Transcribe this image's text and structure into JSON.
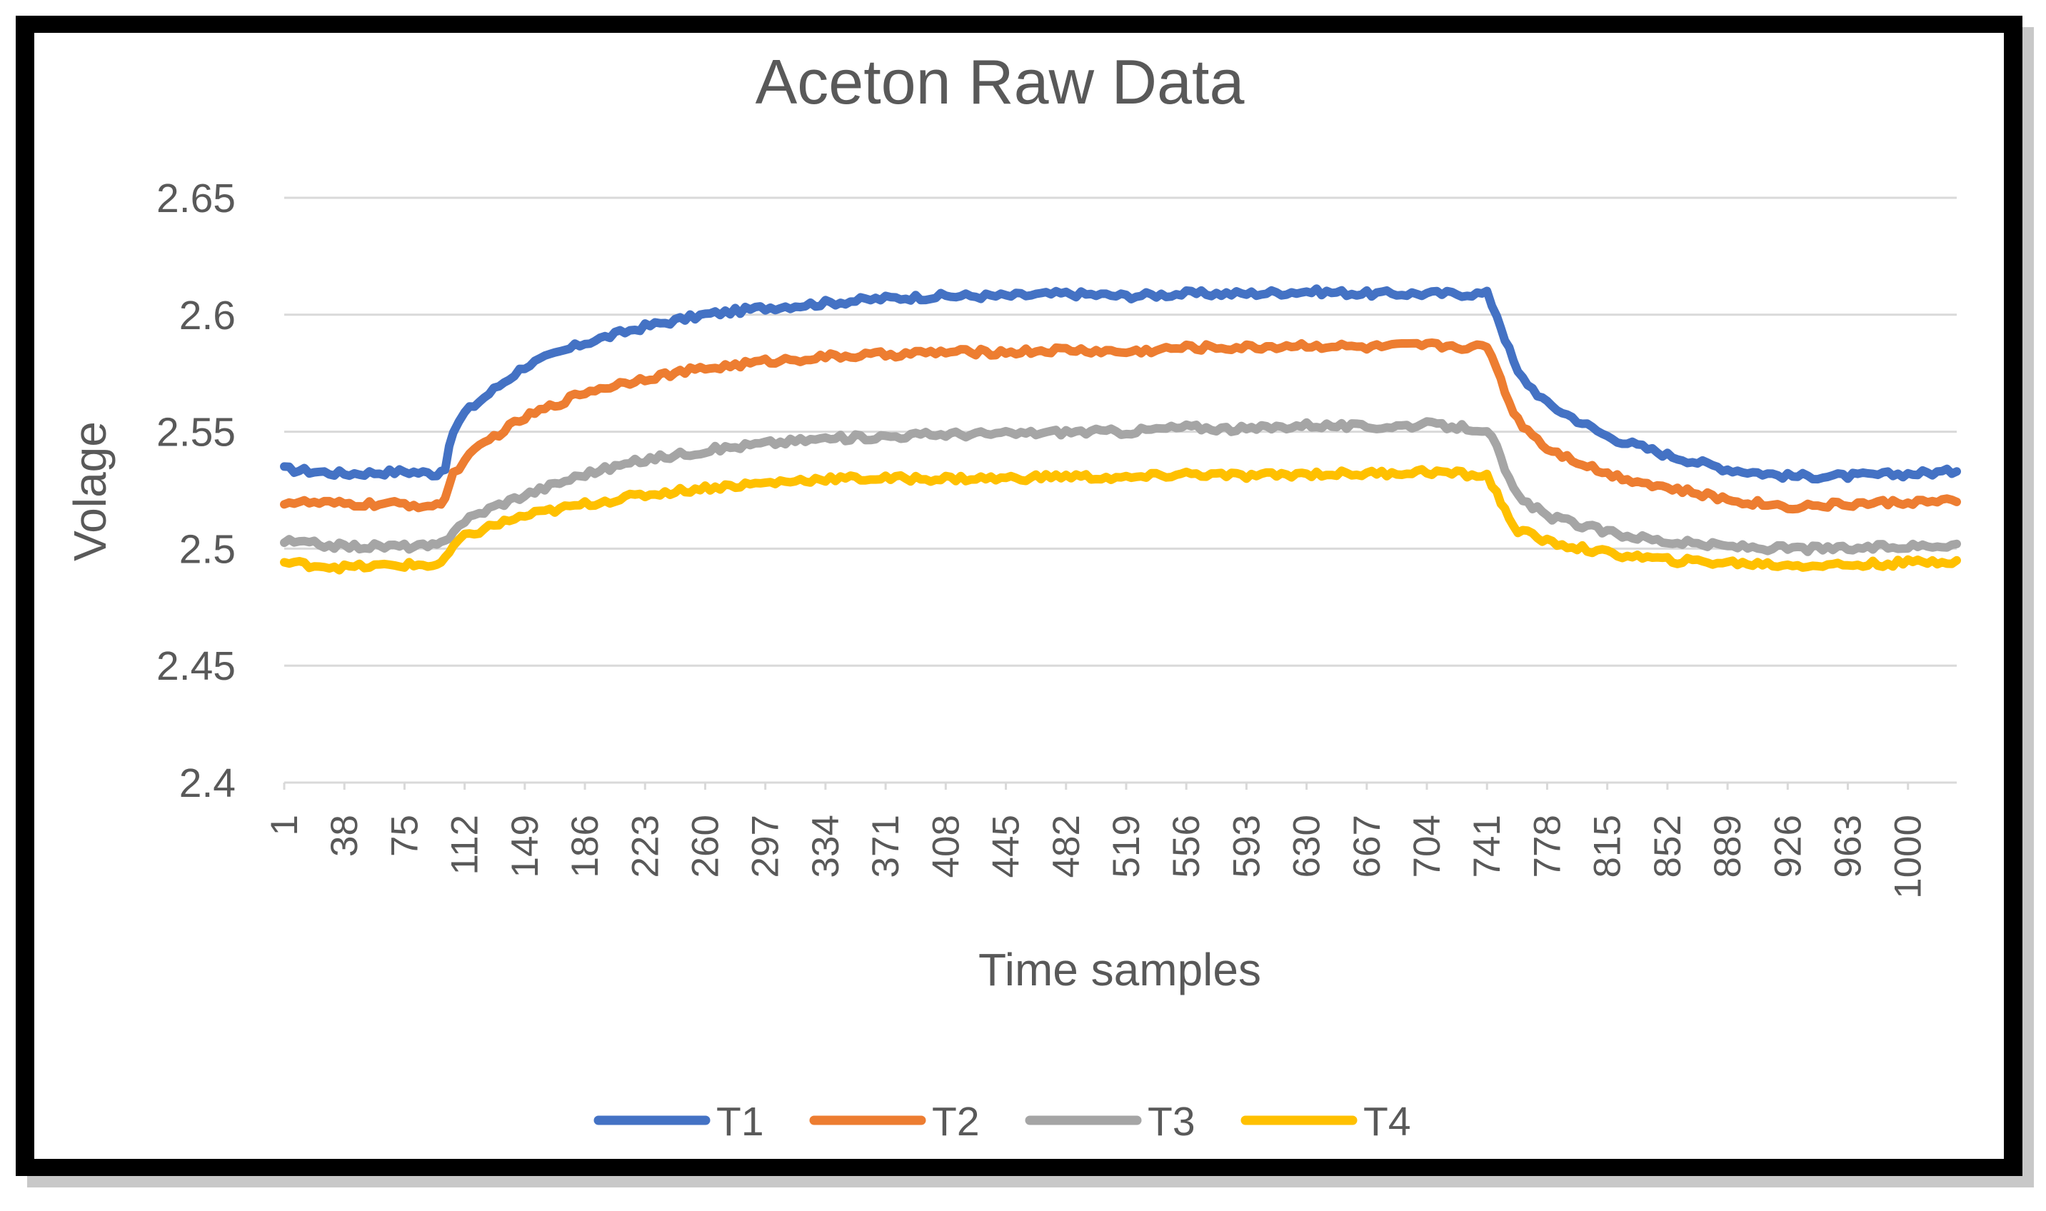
{
  "chart_data": {
    "type": "line",
    "title": "Aceton Raw Data",
    "xlabel": "Time samples",
    "ylabel": "Volage",
    "ylim": [
      2.4,
      2.65
    ],
    "yticks": [
      "2.4",
      "2.45",
      "2.5",
      "2.55",
      "2.6",
      "2.65"
    ],
    "x_range": [
      1,
      1030
    ],
    "xticks": [
      "1",
      "38",
      "75",
      "112",
      "149",
      "186",
      "223",
      "260",
      "297",
      "334",
      "371",
      "408",
      "445",
      "482",
      "519",
      "556",
      "593",
      "630",
      "667",
      "704",
      "741",
      "778",
      "815",
      "852",
      "889",
      "926",
      "963",
      "1000"
    ],
    "grid": true,
    "legend_position": "bottom",
    "series": [
      {
        "name": "T1",
        "color": "#4472C4",
        "x": [
          1,
          38,
          75,
          95,
          100,
          105,
          112,
          130,
          149,
          186,
          223,
          260,
          297,
          334,
          371,
          408,
          445,
          482,
          519,
          556,
          593,
          630,
          667,
          704,
          741,
          747,
          752,
          760,
          778,
          815,
          852,
          889,
          926,
          963,
          1000,
          1030
        ],
        "values": [
          2.534,
          2.532,
          2.533,
          2.532,
          2.535,
          2.55,
          2.558,
          2.568,
          2.578,
          2.588,
          2.595,
          2.6,
          2.603,
          2.605,
          2.607,
          2.608,
          2.608,
          2.609,
          2.608,
          2.609,
          2.609,
          2.61,
          2.609,
          2.609,
          2.609,
          2.6,
          2.59,
          2.575,
          2.562,
          2.548,
          2.54,
          2.534,
          2.531,
          2.531,
          2.532,
          2.533
        ]
      },
      {
        "name": "T2",
        "color": "#ED7D31",
        "x": [
          1,
          38,
          75,
          95,
          100,
          105,
          112,
          130,
          149,
          186,
          223,
          260,
          297,
          334,
          371,
          408,
          445,
          482,
          519,
          556,
          593,
          630,
          667,
          704,
          741,
          747,
          752,
          760,
          778,
          815,
          852,
          889,
          926,
          963,
          1000,
          1030
        ],
        "values": [
          2.52,
          2.519,
          2.519,
          2.518,
          2.522,
          2.532,
          2.538,
          2.548,
          2.556,
          2.567,
          2.573,
          2.577,
          2.58,
          2.582,
          2.583,
          2.584,
          2.584,
          2.585,
          2.584,
          2.586,
          2.586,
          2.587,
          2.586,
          2.587,
          2.586,
          2.578,
          2.567,
          2.555,
          2.543,
          2.532,
          2.526,
          2.521,
          2.518,
          2.519,
          2.52,
          2.52
        ]
      },
      {
        "name": "T3",
        "color": "#A5A5A5",
        "x": [
          1,
          38,
          75,
          95,
          100,
          105,
          112,
          130,
          149,
          186,
          223,
          260,
          297,
          334,
          371,
          408,
          445,
          482,
          519,
          556,
          593,
          630,
          667,
          704,
          741,
          747,
          752,
          760,
          778,
          815,
          852,
          889,
          926,
          963,
          1000,
          1030
        ],
        "values": [
          2.503,
          2.501,
          2.501,
          2.501,
          2.503,
          2.508,
          2.512,
          2.518,
          2.523,
          2.532,
          2.538,
          2.542,
          2.545,
          2.547,
          2.548,
          2.549,
          2.549,
          2.55,
          2.55,
          2.552,
          2.551,
          2.553,
          2.552,
          2.553,
          2.551,
          2.543,
          2.533,
          2.522,
          2.514,
          2.507,
          2.503,
          2.501,
          2.5,
          2.5,
          2.501,
          2.502
        ]
      },
      {
        "name": "T4",
        "color": "#FFC000",
        "x": [
          1,
          38,
          75,
          95,
          100,
          105,
          112,
          130,
          149,
          186,
          223,
          260,
          297,
          334,
          371,
          408,
          445,
          482,
          519,
          556,
          593,
          630,
          667,
          704,
          741,
          747,
          752,
          760,
          778,
          815,
          852,
          889,
          926,
          963,
          1000,
          1030
        ],
        "values": [
          2.494,
          2.492,
          2.493,
          2.493,
          2.495,
          2.501,
          2.505,
          2.51,
          2.514,
          2.519,
          2.523,
          2.526,
          2.528,
          2.53,
          2.53,
          2.53,
          2.53,
          2.531,
          2.53,
          2.532,
          2.531,
          2.532,
          2.532,
          2.533,
          2.531,
          2.524,
          2.516,
          2.508,
          2.503,
          2.498,
          2.495,
          2.494,
          2.493,
          2.493,
          2.494,
          2.495
        ]
      }
    ]
  }
}
